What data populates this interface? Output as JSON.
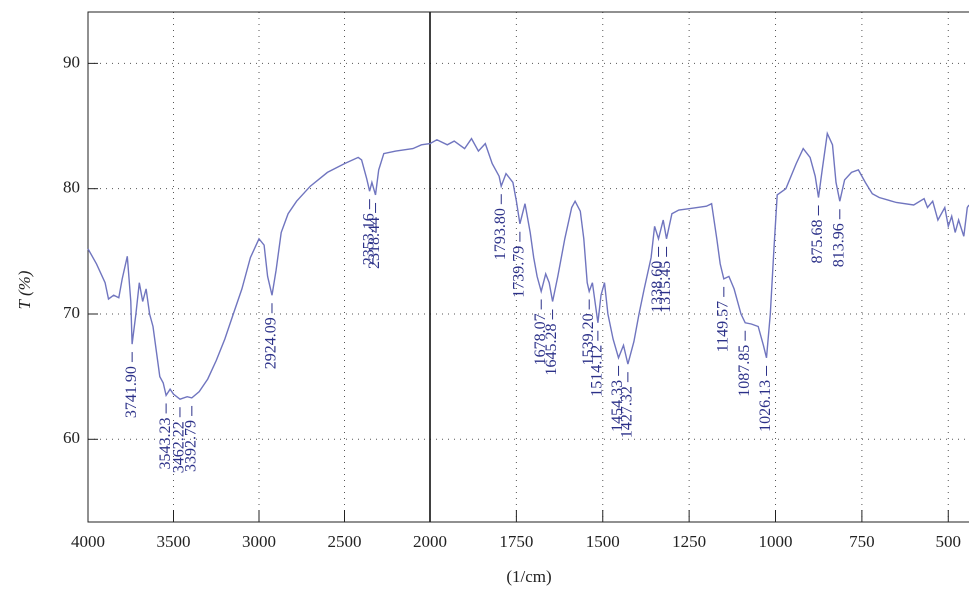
{
  "chart_data": {
    "type": "line",
    "xlabel": "(1/cm)",
    "ylabel": "T (%)",
    "xlim": [
      4000,
      440
    ],
    "ylim": [
      53.4,
      94.1
    ],
    "xbreak": 2000,
    "xticks": [
      4000,
      3500,
      3000,
      2500,
      2000,
      1750,
      1500,
      1250,
      1000,
      750,
      500
    ],
    "yticks": [
      60,
      70,
      80,
      90
    ],
    "grid": true,
    "series": [
      {
        "color": "#7075bf",
        "x": [
          4000,
          3950,
          3900,
          3880,
          3850,
          3820,
          3800,
          3770,
          3750,
          3741.9,
          3720,
          3700,
          3680,
          3660,
          3640,
          3620,
          3600,
          3580,
          3560,
          3543.23,
          3520,
          3500,
          3462.22,
          3420,
          3392.79,
          3350,
          3300,
          3250,
          3200,
          3150,
          3100,
          3050,
          3000,
          2970,
          2950,
          2924.09,
          2900,
          2870,
          2830,
          2780,
          2700,
          2600,
          2500,
          2420,
          2400,
          2370,
          2353.16,
          2340,
          2318.44,
          2300,
          2270,
          2200,
          2100,
          2050,
          2000,
          1980,
          1950,
          1930,
          1900,
          1880,
          1860,
          1840,
          1820,
          1800,
          1793.8,
          1780,
          1760,
          1750,
          1739.79,
          1725,
          1710,
          1700,
          1690,
          1678.07,
          1665,
          1655,
          1645.28,
          1630,
          1610,
          1590,
          1580,
          1565,
          1555,
          1545,
          1539.2,
          1530,
          1514.12,
          1505,
          1495,
          1485,
          1470,
          1454.33,
          1440,
          1427.32,
          1410,
          1395,
          1380,
          1360,
          1350,
          1338.6,
          1325,
          1315.45,
          1300,
          1280,
          1250,
          1200,
          1185,
          1170,
          1160,
          1149.57,
          1135,
          1120,
          1100,
          1087.85,
          1070,
          1050,
          1035,
          1026.13,
          1015,
          1005,
          995,
          970,
          940,
          920,
          900,
          885,
          875.68,
          865,
          850,
          835,
          825,
          813.96,
          800,
          780,
          760,
          740,
          720,
          700,
          650,
          600,
          570,
          560,
          545,
          530,
          510,
          500,
          490,
          480,
          470,
          455,
          445,
          440
        ],
        "values": [
          75.2,
          74,
          72.5,
          71.2,
          71.5,
          71.3,
          72.8,
          74.6,
          71,
          67.6,
          70,
          72.5,
          71,
          72,
          70,
          69,
          67,
          65,
          64.5,
          63.5,
          64,
          63.6,
          63.2,
          63.4,
          63.3,
          63.8,
          64.8,
          66.3,
          68,
          70,
          72,
          74.5,
          76,
          75.5,
          73,
          71.5,
          73.5,
          76.5,
          78,
          79,
          80.2,
          81.3,
          82,
          82.5,
          82.3,
          80.8,
          79.8,
          80.5,
          79.5,
          81.5,
          82.8,
          83,
          83.2,
          83.5,
          83.6,
          83.9,
          83.5,
          83.8,
          83.2,
          84,
          83,
          83.6,
          82,
          81,
          80.2,
          81.2,
          80.5,
          79,
          77.2,
          78.8,
          76.5,
          74.5,
          73,
          71.8,
          73.2,
          72.5,
          71,
          73,
          76,
          78.5,
          79,
          78.2,
          76,
          72.5,
          71.8,
          72.5,
          69.3,
          71.5,
          72.5,
          70,
          68,
          66.5,
          67.5,
          66,
          67.8,
          70,
          72,
          74.5,
          77,
          76,
          77.5,
          76,
          78,
          78.3,
          78.4,
          78.6,
          78.8,
          76,
          74,
          72.8,
          73,
          72,
          70,
          69.3,
          69.2,
          69,
          67.5,
          66.5,
          70,
          75,
          79.5,
          80,
          82,
          83.2,
          82.5,
          81,
          79.3,
          81.5,
          84.4,
          83.5,
          80.5,
          79,
          80.7,
          81.3,
          81.5,
          80.5,
          79.6,
          79.3,
          78.9,
          78.7,
          79.2,
          78.5,
          79,
          77.5,
          78.5,
          77,
          77.8,
          76.5,
          77.5,
          76.2,
          78.5,
          78.7
        ]
      }
    ],
    "annotations": [
      {
        "x": 3741.9,
        "text": "3741.90"
      },
      {
        "x": 3543.23,
        "text": "3543.23"
      },
      {
        "x": 3462.22,
        "text": "3462.22"
      },
      {
        "x": 3392.79,
        "text": "3392.79"
      },
      {
        "x": 2924.09,
        "text": "2924.09"
      },
      {
        "x": 2353.16,
        "text": "2353.16"
      },
      {
        "x": 2318.44,
        "text": "2318.44"
      },
      {
        "x": 1793.8,
        "text": "1793.80"
      },
      {
        "x": 1739.79,
        "text": "1739.79"
      },
      {
        "x": 1678.07,
        "text": "1678.07"
      },
      {
        "x": 1645.28,
        "text": "1645.28"
      },
      {
        "x": 1539.2,
        "text": "1539.20"
      },
      {
        "x": 1514.12,
        "text": "1514.12"
      },
      {
        "x": 1454.33,
        "text": "1454.33"
      },
      {
        "x": 1427.32,
        "text": "1427.32"
      },
      {
        "x": 1338.6,
        "text": "1338.60"
      },
      {
        "x": 1315.45,
        "text": "1315.45"
      },
      {
        "x": 1149.57,
        "text": "1149.57"
      },
      {
        "x": 1087.85,
        "text": "1087.85"
      },
      {
        "x": 1026.13,
        "text": "1026.13"
      },
      {
        "x": 875.68,
        "text": "875.68"
      },
      {
        "x": 813.96,
        "text": "813.96"
      }
    ]
  }
}
